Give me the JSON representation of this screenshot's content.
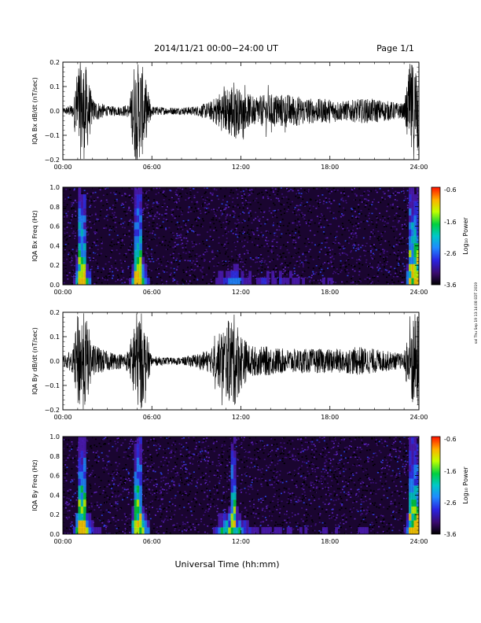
{
  "header": {
    "title": "2014/11/21   00:00−24:00 UT",
    "page": "Page 1/1"
  },
  "footer": {
    "xlabel": "Universal Time (hh:mm)"
  },
  "side_note": "sal Thu Sep 19 13:14:08 EDT 2019",
  "colorbar": {
    "label": "Log₁₀ Power",
    "ticks": [
      "-0.6",
      "-1.6",
      "-2.6",
      "-3.6"
    ],
    "range": [
      -3.6,
      -0.6
    ]
  },
  "chart_data": [
    {
      "type": "line",
      "ylabel": "IQA Bx dB/dt (nT/sec)",
      "xlabel": "",
      "xticks": [
        "00:00",
        "06:00",
        "12:00",
        "18:00",
        "24:00"
      ],
      "xlim": [
        0,
        24
      ],
      "yticks": [
        "0.2",
        "0.1",
        "0.0",
        "−0.1",
        "−0.2"
      ],
      "ylim": [
        -0.2,
        0.2
      ],
      "series": [
        {
          "x": [
            0,
            0.7,
            1.0,
            1.5,
            2,
            3,
            4,
            4.5,
            4.8,
            5.3,
            6,
            7,
            8,
            9,
            10,
            10.6,
            11,
            11.5,
            12,
            12.5,
            13,
            14,
            15,
            16,
            17,
            18,
            19,
            20,
            21,
            22,
            23,
            23.4,
            24
          ],
          "amplitude": [
            0.01,
            0.03,
            0.2,
            0.2,
            0.05,
            0.02,
            0.02,
            0.03,
            0.2,
            0.2,
            0.02,
            0.015,
            0.015,
            0.02,
            0.04,
            0.08,
            0.09,
            0.13,
            0.08,
            0.07,
            0.06,
            0.07,
            0.07,
            0.06,
            0.05,
            0.05,
            0.04,
            0.05,
            0.05,
            0.04,
            0.03,
            0.2,
            0.2
          ]
        }
      ]
    },
    {
      "type": "heatmap",
      "ylabel": "IQA Bx Freq (Hz)",
      "xlabel": "",
      "xticks": [
        "00:00",
        "06:00",
        "12:00",
        "18:00",
        "24:00"
      ],
      "xlim": [
        0,
        24
      ],
      "yticks": [
        "1.0",
        "0.8",
        "0.6",
        "0.4",
        "0.2",
        "0.0"
      ],
      "ylim": [
        0.0,
        1.0
      ],
      "colorbar_ref": "colorbar"
    },
    {
      "type": "line",
      "ylabel": "IQA By dB/dt (nT/sec)",
      "xlabel": "",
      "xticks": [
        "00:00",
        "06:00",
        "12:00",
        "18:00",
        "24:00"
      ],
      "xlim": [
        0,
        24
      ],
      "yticks": [
        "0.2",
        "0.1",
        "0.0",
        "−0.1",
        "−0.2"
      ],
      "ylim": [
        -0.2,
        0.2
      ],
      "series": [
        {
          "x": [
            0,
            0.7,
            1.0,
            1.5,
            2,
            3,
            4,
            4.5,
            4.8,
            5.3,
            6,
            7,
            8,
            9,
            10,
            10.6,
            11,
            11.5,
            12,
            12.5,
            13,
            14,
            15,
            16,
            17,
            18,
            19,
            20,
            21,
            22,
            23,
            23.4,
            24
          ],
          "amplitude": [
            0.02,
            0.05,
            0.2,
            0.2,
            0.07,
            0.04,
            0.03,
            0.05,
            0.2,
            0.2,
            0.02,
            0.015,
            0.015,
            0.03,
            0.05,
            0.12,
            0.15,
            0.2,
            0.12,
            0.07,
            0.06,
            0.06,
            0.05,
            0.05,
            0.05,
            0.05,
            0.05,
            0.06,
            0.05,
            0.04,
            0.03,
            0.2,
            0.2
          ]
        }
      ]
    },
    {
      "type": "heatmap",
      "ylabel": "IQA By Freq (Hz)",
      "xlabel": "",
      "xticks": [
        "00:00",
        "06:00",
        "12:00",
        "18:00",
        "24:00"
      ],
      "xlim": [
        0,
        24
      ],
      "yticks": [
        "1.0",
        "0.8",
        "0.6",
        "0.4",
        "0.2",
        "0.0"
      ],
      "ylim": [
        0.0,
        1.0
      ],
      "colorbar_ref": "colorbar"
    }
  ]
}
